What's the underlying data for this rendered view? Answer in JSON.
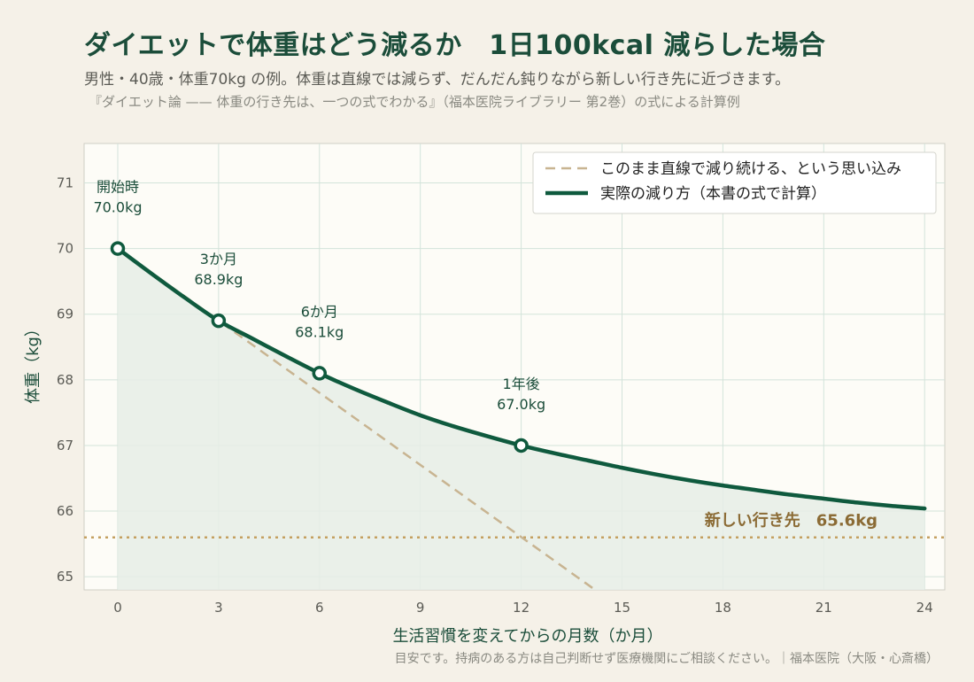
{
  "header": {
    "title": "ダイエットで体重はどう減るか　1日100kcal 減らした場合",
    "subtitle": "男性・40歳・体重70kg の例。体重は直線では減らず、だんだん鈍りながら新しい行き先に近づきます。",
    "source": "『ダイエット論 —— 体重の行き先は、一つの式でわかる』（福本医院ライブラリー 第2巻）の式による計算例"
  },
  "footer": "目安です。持病のある方は自己判断せず医療機関にご相談ください。｜福本医院（大阪・心斎橋）",
  "colors": {
    "actual": "#0f5a3e",
    "naive": "#c8b491",
    "target": "#c4a060",
    "target_label": "#8b6b35",
    "fill": "#e6ede6",
    "plot_bg": "#fdfcf7",
    "grid": "#d3e3da"
  },
  "chart_data": {
    "type": "line",
    "xlabel": "生活習慣を変えてからの月数（か月）",
    "ylabel": "体重（kg）",
    "xlim": [
      -1,
      24.6
    ],
    "ylim": [
      64.8,
      71.6
    ],
    "xticks": [
      "0",
      "3",
      "6",
      "9",
      "12",
      "15",
      "18",
      "21",
      "24"
    ],
    "yticks": [
      "65",
      "66",
      "67",
      "68",
      "69",
      "70",
      "71"
    ],
    "grid": true,
    "legend_position": "top-right",
    "series": [
      {
        "name": "このまま直線で減り続ける、という思い込み",
        "style": "dashed",
        "x": [
          0,
          14.2
        ],
        "y": [
          70.0,
          64.8
        ]
      },
      {
        "name": "実際の減り方（本書の式で計算）",
        "style": "solid",
        "x": [
          0,
          1,
          2,
          3,
          4,
          5,
          6,
          7,
          8,
          9,
          10,
          11,
          12,
          13,
          14,
          15,
          16,
          17,
          18,
          19,
          20,
          21,
          22,
          23,
          24
        ],
        "y": [
          70.0,
          69.62,
          69.25,
          68.9,
          68.63,
          68.36,
          68.1,
          67.87,
          67.66,
          67.46,
          67.29,
          67.14,
          67.0,
          66.88,
          66.77,
          66.66,
          66.56,
          66.47,
          66.39,
          66.32,
          66.25,
          66.19,
          66.13,
          66.08,
          66.04
        ]
      }
    ],
    "target": {
      "y": 65.6,
      "label": "新しい行き先　65.6kg"
    },
    "annotations": [
      {
        "x": 0,
        "y": 70.0,
        "line1": "開始時",
        "line2": "70.0kg"
      },
      {
        "x": 3,
        "y": 68.9,
        "line1": "3か月",
        "line2": "68.9kg"
      },
      {
        "x": 6,
        "y": 68.1,
        "line1": "6か月",
        "line2": "68.1kg"
      },
      {
        "x": 12,
        "y": 67.0,
        "line1": "1年後",
        "line2": "67.0kg"
      }
    ]
  }
}
